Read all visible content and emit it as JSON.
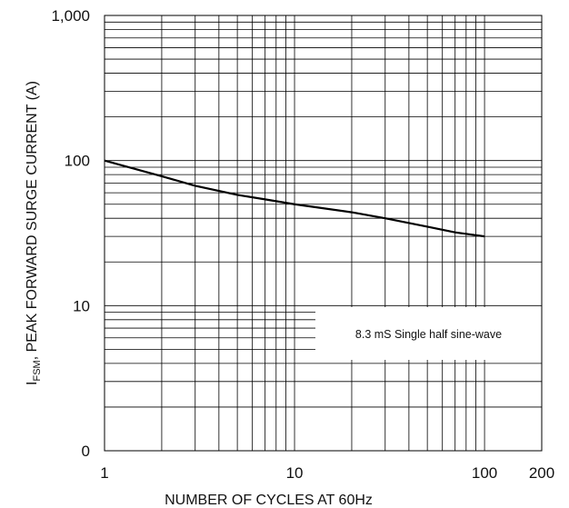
{
  "chart_data": {
    "type": "line",
    "title": "",
    "xlabel": "NUMBER OF CYCLES AT 60Hz",
    "ylabel": {
      "symbol": "I",
      "subscript": "FSM",
      "text": ", PEAK FORWARD SURGE CURRENT (A)"
    },
    "x_scale": "log",
    "y_scale": "log",
    "xlim": [
      1,
      200
    ],
    "ylim": [
      1,
      1000
    ],
    "x_ticks": [
      {
        "value": 1,
        "label": "1"
      },
      {
        "value": 10,
        "label": "10"
      },
      {
        "value": 100,
        "label": "100"
      },
      {
        "value": 200,
        "label": "200"
      }
    ],
    "y_ticks": [
      {
        "value": 1,
        "label": "0"
      },
      {
        "value": 10,
        "label": "10"
      },
      {
        "value": 100,
        "label": "100"
      },
      {
        "value": 1000,
        "label": "1,000"
      }
    ],
    "grid": true,
    "annotation": "8.3 mS Single half sine-wave",
    "series": [
      {
        "x": [
          1,
          2,
          3,
          5,
          7,
          10,
          20,
          30,
          50,
          70,
          100
        ],
        "y": [
          100,
          78,
          67,
          58,
          54,
          50,
          44,
          40,
          35,
          32,
          30
        ]
      }
    ]
  }
}
